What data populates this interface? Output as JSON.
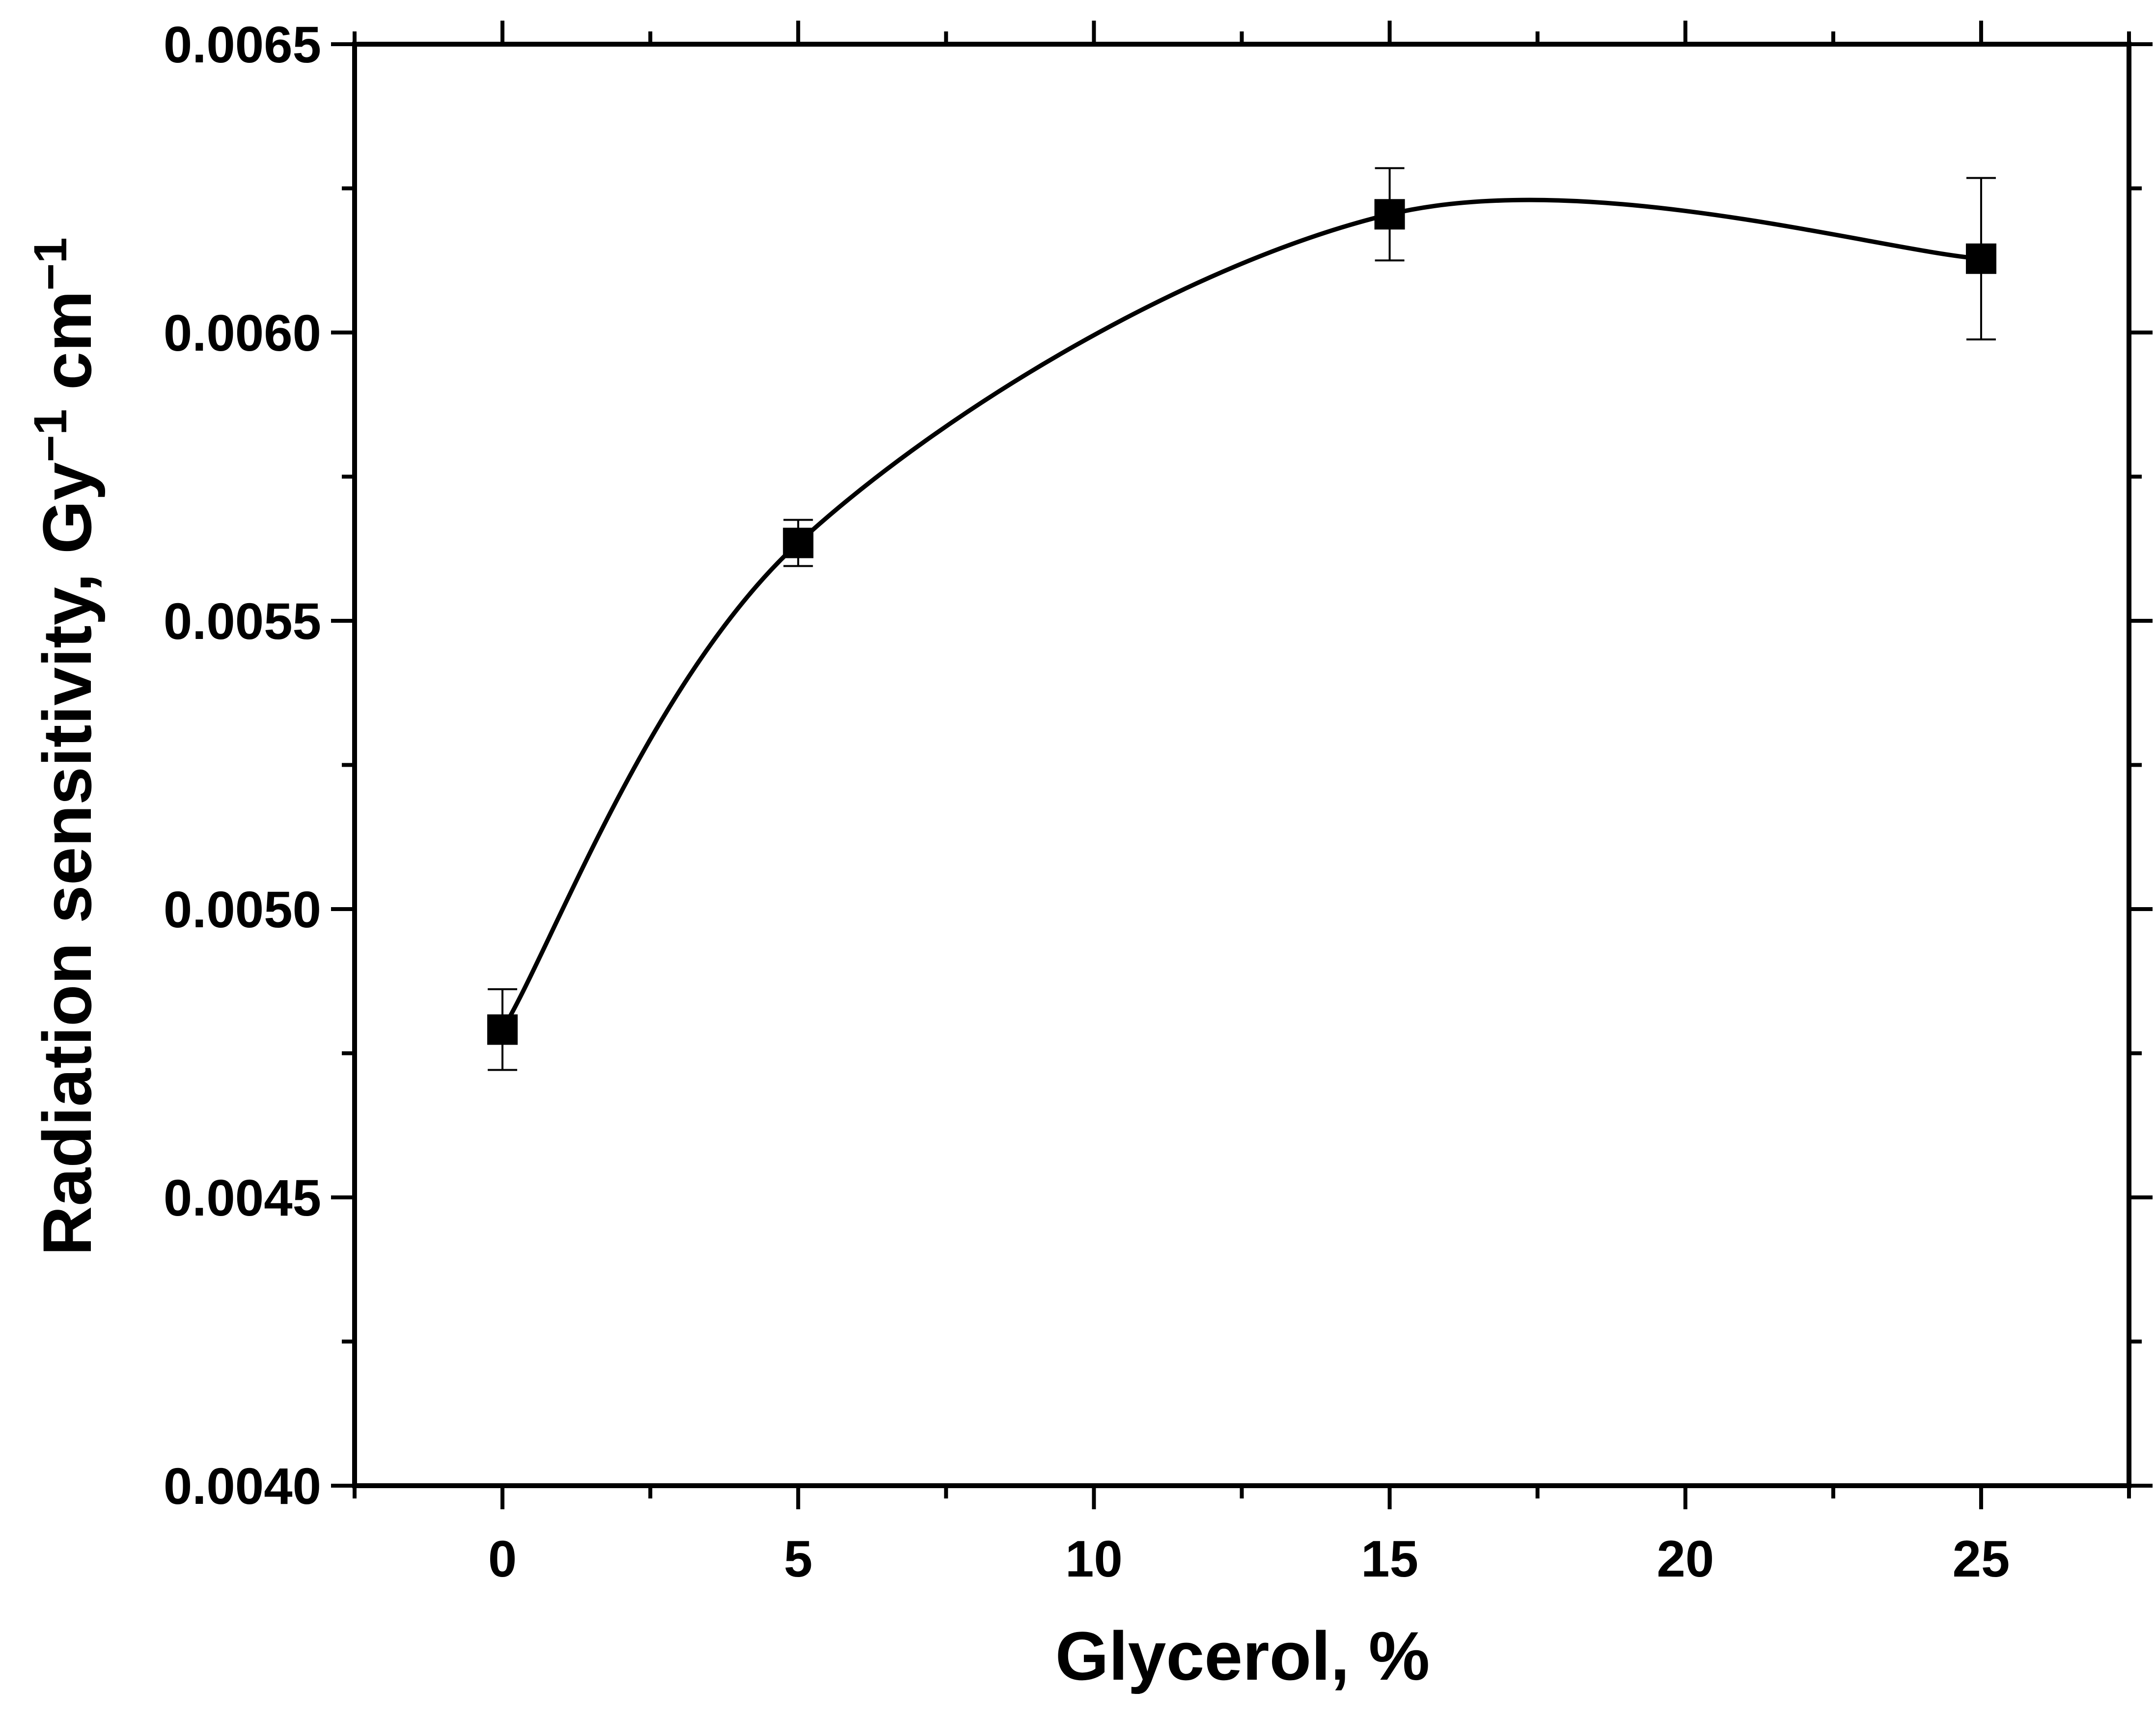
{
  "chart_data": {
    "type": "scatter",
    "xlabel": "Glycerol, %",
    "ylabel": "Radiation sensitivity, Gy",
    "ylabel_sup1": "−1",
    "ylabel_mid": " cm",
    "ylabel_sup2": "−1",
    "xlim": [
      -2.5,
      27.5
    ],
    "ylim": [
      0.004,
      0.0065
    ],
    "x_ticks": [
      0,
      5,
      10,
      15,
      20,
      25
    ],
    "x_tick_labels": [
      "0",
      "5",
      "10",
      "15",
      "20",
      "25"
    ],
    "y_ticks": [
      0.004,
      0.0045,
      0.005,
      0.0055,
      0.006,
      0.0065
    ],
    "y_tick_labels": [
      "0.0040",
      "0.0045",
      "0.0050",
      "0.0055",
      "0.0060",
      "0.0065"
    ],
    "x_minor_ticks": [
      -2.5,
      2.5,
      7.5,
      12.5,
      17.5,
      22.5,
      27.5
    ],
    "y_minor_ticks": [
      0.00425,
      0.00475,
      0.00525,
      0.00575,
      0.00625
    ],
    "grid": false,
    "legend": "none",
    "series": [
      {
        "marker": "square",
        "x": [
          0,
          5,
          15,
          25
        ],
        "y": [
          0.004791,
          0.005635,
          0.006205,
          0.006128
        ],
        "error": [
          7e-05,
          4e-05,
          8e-05,
          0.00014
        ],
        "fit_line": "smooth spline through points",
        "color": "#000000"
      }
    ]
  }
}
